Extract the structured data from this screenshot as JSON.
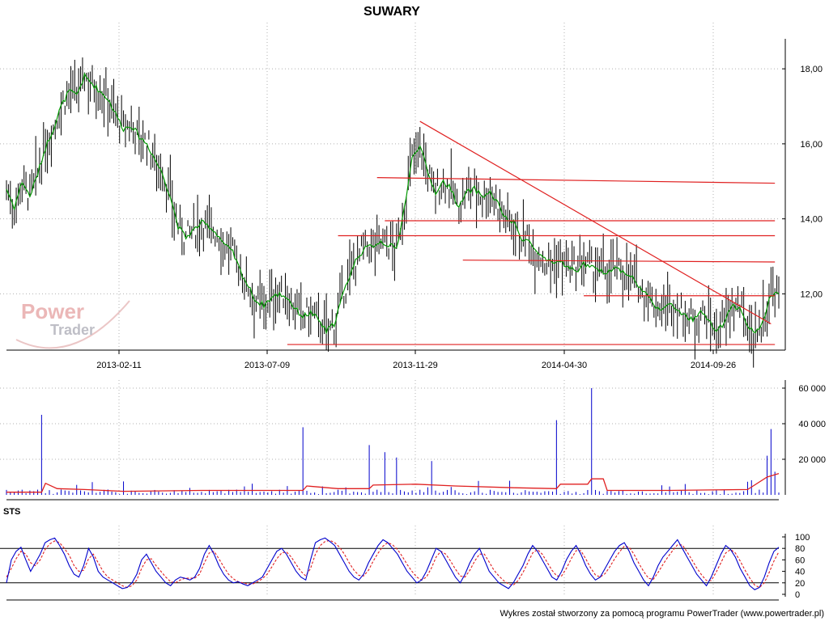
{
  "title": "SUWARY",
  "footer": "Wykres został stworzony za pomocą programu PowerTrader (www.powertrader.pl)",
  "logo": {
    "line1": "Power",
    "line2": "Trader"
  },
  "colors": {
    "background": "#ffffff",
    "grid": "#b0b0b0",
    "price": "#000000",
    "average": "#009900",
    "trendline": "#e02020",
    "volume": "#0000cc",
    "volume_avg": "#e02020",
    "sts_k": "#0000cc",
    "sts_d": "#e02020"
  },
  "chart_data": [
    {
      "type": "ohlc",
      "name": "price",
      "title": "SUWARY",
      "x_tick_labels": [
        "2013-02-11",
        "2013-07-09",
        "2013-11-29",
        "2014-04-30",
        "2014-09-26"
      ],
      "y_tick_labels": [
        "18,00",
        "16,00",
        "14,00",
        "12,00"
      ],
      "ylim": [
        10.5,
        18.8
      ],
      "grid": true,
      "price_path": [
        [
          0,
          14.8
        ],
        [
          4,
          14.3
        ],
        [
          8,
          15.0
        ],
        [
          12,
          14.6
        ],
        [
          16,
          15.2
        ],
        [
          20,
          15.9
        ],
        [
          24,
          16.4
        ],
        [
          28,
          17.0
        ],
        [
          32,
          17.4
        ],
        [
          36,
          17.3
        ],
        [
          40,
          17.8
        ],
        [
          44,
          17.6
        ],
        [
          48,
          17.4
        ],
        [
          52,
          17.2
        ],
        [
          56,
          16.8
        ],
        [
          60,
          16.4
        ],
        [
          64,
          16.5
        ],
        [
          68,
          16.2
        ],
        [
          72,
          16.0
        ],
        [
          76,
          15.6
        ],
        [
          80,
          15.2
        ],
        [
          84,
          14.6
        ],
        [
          88,
          13.8
        ],
        [
          92,
          13.5
        ],
        [
          96,
          13.7
        ],
        [
          100,
          13.9
        ],
        [
          104,
          13.8
        ],
        [
          108,
          13.6
        ],
        [
          112,
          13.3
        ],
        [
          116,
          13.1
        ],
        [
          120,
          12.6
        ],
        [
          124,
          12.2
        ],
        [
          128,
          11.8
        ],
        [
          132,
          11.7
        ],
        [
          136,
          11.9
        ],
        [
          140,
          12.0
        ],
        [
          144,
          11.9
        ],
        [
          148,
          11.6
        ],
        [
          152,
          11.4
        ],
        [
          156,
          11.5
        ],
        [
          160,
          11.3
        ],
        [
          164,
          11.0
        ],
        [
          168,
          11.2
        ],
        [
          172,
          11.9
        ],
        [
          176,
          12.5
        ],
        [
          180,
          13.0
        ],
        [
          184,
          13.2
        ],
        [
          188,
          13.3
        ],
        [
          192,
          13.4
        ],
        [
          196,
          13.3
        ],
        [
          200,
          13.2
        ],
        [
          204,
          14.3
        ],
        [
          208,
          15.6
        ],
        [
          212,
          16.0
        ],
        [
          216,
          15.2
        ],
        [
          220,
          14.7
        ],
        [
          224,
          15.0
        ],
        [
          228,
          14.8
        ],
        [
          232,
          14.3
        ],
        [
          236,
          14.7
        ],
        [
          240,
          14.8
        ],
        [
          244,
          14.6
        ],
        [
          248,
          14.7
        ],
        [
          252,
          14.4
        ],
        [
          256,
          14.0
        ],
        [
          260,
          13.9
        ],
        [
          264,
          13.5
        ],
        [
          268,
          13.4
        ],
        [
          272,
          13.1
        ],
        [
          276,
          12.9
        ],
        [
          280,
          12.8
        ],
        [
          284,
          12.9
        ],
        [
          288,
          12.7
        ],
        [
          292,
          12.6
        ],
        [
          296,
          12.8
        ],
        [
          300,
          12.7
        ],
        [
          304,
          12.6
        ],
        [
          308,
          12.6
        ],
        [
          312,
          12.7
        ],
        [
          316,
          12.6
        ],
        [
          320,
          12.5
        ],
        [
          324,
          12.2
        ],
        [
          328,
          12.0
        ],
        [
          332,
          11.7
        ],
        [
          336,
          11.6
        ],
        [
          340,
          11.7
        ],
        [
          344,
          11.6
        ],
        [
          348,
          11.4
        ],
        [
          352,
          11.3
        ],
        [
          356,
          11.5
        ],
        [
          360,
          11.3
        ],
        [
          364,
          11.0
        ],
        [
          368,
          11.2
        ],
        [
          372,
          11.7
        ],
        [
          376,
          11.6
        ],
        [
          380,
          11.2
        ],
        [
          384,
          10.9
        ],
        [
          388,
          11.3
        ],
        [
          392,
          12.0
        ]
      ],
      "trendlines": [
        {
          "from": [
            212,
            16.6
          ],
          "to": [
            392,
            11.2
          ]
        },
        {
          "from": [
            190,
            15.1
          ],
          "to": [
            394,
            14.95
          ]
        },
        {
          "from": [
            194,
            13.95
          ],
          "to": [
            394,
            13.95
          ]
        },
        {
          "from": [
            170,
            13.55
          ],
          "to": [
            394,
            13.55
          ]
        },
        {
          "from": [
            234,
            12.9
          ],
          "to": [
            394,
            12.85
          ]
        },
        {
          "from": [
            296,
            11.95
          ],
          "to": [
            394,
            11.95
          ]
        },
        {
          "from": [
            144,
            10.65
          ],
          "to": [
            394,
            10.65
          ]
        }
      ]
    },
    {
      "type": "bar",
      "name": "volume",
      "y_tick_labels": [
        "60 000",
        "40 000",
        "20 000"
      ],
      "ylim": [
        0,
        60000
      ],
      "grid": true,
      "spikes": [
        [
          18,
          45000
        ],
        [
          152,
          38000
        ],
        [
          186,
          28000
        ],
        [
          194,
          24000
        ],
        [
          200,
          21000
        ],
        [
          218,
          19000
        ],
        [
          282,
          42000
        ],
        [
          300,
          60000
        ],
        [
          390,
          22000
        ],
        [
          392,
          37000
        ],
        [
          394,
          13000
        ]
      ],
      "baseline": 1200,
      "avg_path": [
        [
          0,
          1500
        ],
        [
          18,
          1500
        ],
        [
          20,
          6500
        ],
        [
          26,
          3500
        ],
        [
          40,
          3000
        ],
        [
          60,
          2000
        ],
        [
          100,
          2500
        ],
        [
          140,
          2500
        ],
        [
          152,
          2500
        ],
        [
          154,
          5000
        ],
        [
          170,
          3500
        ],
        [
          186,
          3500
        ],
        [
          188,
          5500
        ],
        [
          210,
          6000
        ],
        [
          230,
          5000
        ],
        [
          260,
          4000
        ],
        [
          282,
          3500
        ],
        [
          284,
          6000
        ],
        [
          298,
          6000
        ],
        [
          300,
          9000
        ],
        [
          306,
          9000
        ],
        [
          308,
          2500
        ],
        [
          340,
          2500
        ],
        [
          380,
          3000
        ],
        [
          390,
          10000
        ],
        [
          396,
          12000
        ]
      ]
    },
    {
      "type": "line",
      "name": "STS",
      "title": "STS",
      "y_tick_labels": [
        "100",
        "80",
        "60",
        "40",
        "20",
        "0"
      ],
      "ylim": [
        0,
        100
      ],
      "grid": true,
      "series": [
        {
          "values": [
            20,
            60,
            75,
            82,
            60,
            40,
            55,
            70,
            90,
            95,
            98,
            85,
            70,
            50,
            35,
            30,
            50,
            80,
            65,
            40,
            30,
            25,
            20,
            15,
            10,
            12,
            20,
            35,
            60,
            70,
            55,
            40,
            30,
            20,
            15,
            25,
            30,
            28,
            25,
            30,
            45,
            70,
            85,
            70,
            50,
            35,
            25,
            20,
            22,
            18,
            15,
            20,
            25,
            30,
            45,
            60,
            75,
            80,
            70,
            55,
            40,
            30,
            25,
            60,
            90,
            95,
            98,
            92,
            85,
            70,
            55,
            40,
            30,
            25,
            35,
            55,
            70,
            85,
            95,
            90,
            80,
            70,
            55,
            40,
            30,
            20,
            25,
            40,
            60,
            80,
            75,
            60,
            45,
            30,
            20,
            35,
            55,
            70,
            80,
            60,
            40,
            30,
            20,
            15,
            10,
            20,
            35,
            50,
            70,
            85,
            75,
            60,
            45,
            30,
            25,
            40,
            60,
            75,
            85,
            70,
            50,
            35,
            25,
            30,
            45,
            60,
            75,
            85,
            90,
            75,
            55,
            40,
            25,
            15,
            30,
            50,
            65,
            75,
            85,
            95,
            80,
            65,
            50,
            35,
            25,
            15,
            30,
            50,
            70,
            85,
            78,
            65,
            45,
            30,
            15,
            8,
            12,
            30,
            55,
            75,
            82
          ]
        },
        {
          "values": [
            30,
            45,
            62,
            75,
            70,
            55,
            50,
            60,
            78,
            88,
            93,
            90,
            80,
            68,
            50,
            40,
            42,
            62,
            70,
            55,
            40,
            30,
            25,
            20,
            15,
            12,
            15,
            25,
            45,
            60,
            62,
            50,
            40,
            30,
            22,
            20,
            25,
            28,
            28,
            28,
            35,
            55,
            72,
            75,
            62,
            48,
            35,
            27,
            22,
            20,
            18,
            18,
            22,
            27,
            35,
            48,
            62,
            72,
            74,
            65,
            52,
            40,
            32,
            45,
            70,
            85,
            92,
            94,
            90,
            82,
            70,
            55,
            42,
            33,
            32,
            42,
            58,
            72,
            84,
            90,
            86,
            78,
            66,
            52,
            40,
            30,
            25,
            30,
            45,
            65,
            75,
            70,
            58,
            44,
            32,
            30,
            42,
            58,
            70,
            70,
            56,
            42,
            32,
            24,
            18,
            16,
            24,
            38,
            55,
            72,
            78,
            70,
            56,
            42,
            32,
            32,
            45,
            62,
            76,
            76,
            62,
            46,
            34,
            30,
            36,
            48,
            62,
            74,
            84,
            82,
            70,
            54,
            40,
            28,
            26,
            38,
            52,
            65,
            76,
            86,
            86,
            74,
            60,
            46,
            34,
            24,
            24,
            38,
            55,
            72,
            78,
            72,
            58,
            42,
            28,
            16,
            12,
            20,
            38,
            58,
            74
          ]
        }
      ]
    }
  ]
}
